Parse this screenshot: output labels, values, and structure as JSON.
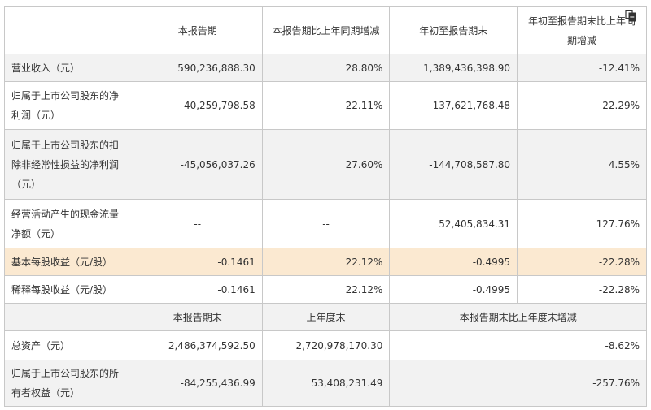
{
  "header": {
    "col1": "",
    "col2": "本报告期",
    "col3": "本报告期比上年同期增减",
    "col4": "年初至报告期末",
    "col5": "年初至报告期末比上年同期增减"
  },
  "rows": [
    {
      "label": "营业收入（元）",
      "v1": "590,236,888.30",
      "v2": "28.80%",
      "v3": "1,389,436,398.90",
      "v4": "-12.41%"
    },
    {
      "label": "归属于上市公司股东的净利润（元）",
      "v1": "-40,259,798.58",
      "v2": "22.11%",
      "v3": "-137,621,768.48",
      "v4": "-22.29%"
    },
    {
      "label": "归属于上市公司股东的扣除非经常性损益的净利润（元）",
      "v1": "-45,056,037.26",
      "v2": "27.60%",
      "v3": "-144,708,587.80",
      "v4": "4.55%"
    },
    {
      "label": "经营活动产生的现金流量净额（元）",
      "v1": "--",
      "v2": "--",
      "v3": "52,405,834.31",
      "v4": "127.76%"
    },
    {
      "label": "基本每股收益（元/股）",
      "v1": "-0.1461",
      "v2": "22.12%",
      "v3": "-0.4995",
      "v4": "-22.28%"
    },
    {
      "label": "稀释每股收益（元/股）",
      "v1": "-0.1461",
      "v2": "22.12%",
      "v3": "-0.4995",
      "v4": "-22.28%"
    }
  ],
  "subheader": {
    "col2": "本报告期末",
    "col3": "上年度末",
    "col45": "本报告期末比上年度末增减"
  },
  "rows2": [
    {
      "label": "总资产（元）",
      "v1": "2,486,374,592.50",
      "v2": "2,720,978,170.30",
      "v3": "-8.62%"
    },
    {
      "label": "归属于上市公司股东的所有者权益（元）",
      "v1": "-84,255,436.99",
      "v2": "53,408,231.49",
      "v3": "-257.76%"
    }
  ],
  "icons": {
    "corner": "copy-document-icon"
  },
  "colors": {
    "highlight_row": "#fbe9d1",
    "gray_row": "#f2f2f2",
    "border": "#c8c8c8"
  }
}
